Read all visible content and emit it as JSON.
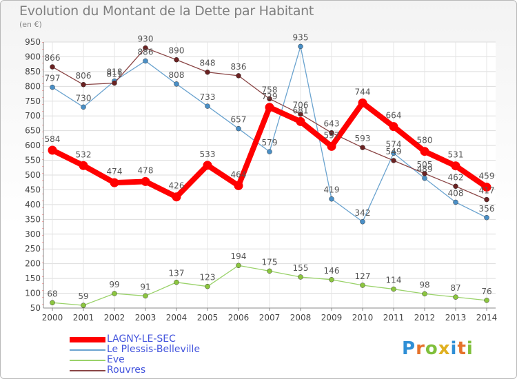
{
  "header": {
    "title": "Evolution du Montant de la Dette par Habitant",
    "unit": "(en €)"
  },
  "logo": {
    "text": "Proxiti",
    "letters": [
      {
        "ch": "P",
        "color": "#2f8fd6"
      },
      {
        "ch": "r",
        "color": "#e5722a"
      },
      {
        "ch": "o",
        "color": "#7fbf3a"
      },
      {
        "ch": "x",
        "color": "#e0b020"
      },
      {
        "ch": "i",
        "color": "#2f8fd6"
      },
      {
        "ch": "t",
        "color": "#e5722a"
      },
      {
        "ch": "i",
        "color": "#7fbf3a"
      }
    ]
  },
  "chart_data": {
    "type": "line",
    "title": "Evolution du Montant de la Dette par Habitant",
    "ylabel": "(en €)",
    "xlabel": "",
    "x": [
      "2000",
      "2001",
      "2002",
      "2003",
      "2004",
      "2005",
      "2006",
      "2007",
      "2008",
      "2009",
      "2010",
      "2011",
      "2012",
      "2013",
      "2014"
    ],
    "ylim": [
      50,
      950
    ],
    "yticks": [
      50,
      100,
      150,
      200,
      250,
      300,
      350,
      400,
      450,
      500,
      550,
      600,
      650,
      700,
      750,
      800,
      850,
      900,
      950
    ],
    "grid": true,
    "legend_position": "bottom-left",
    "series": [
      {
        "name": "Le Plessis-Belleville",
        "color": "#6aa3cf",
        "marker": "#4a8fc6",
        "width": 1.3,
        "values": [
          797,
          730,
          818,
          886,
          808,
          733,
          657,
          579,
          935,
          419,
          342,
          574,
          489,
          408,
          356
        ]
      },
      {
        "name": "Eve",
        "color": "#9ad26a",
        "marker": "#8cc63f",
        "width": 1.3,
        "values": [
          68,
          59,
          99,
          91,
          137,
          123,
          194,
          175,
          155,
          146,
          127,
          114,
          98,
          87,
          76
        ]
      },
      {
        "name": "Rouvres",
        "color": "#8a4545",
        "marker": "#6b2222",
        "width": 1.3,
        "values": [
          866,
          806,
          811,
          930,
          890,
          848,
          836,
          758,
          706,
          643,
          593,
          549,
          505,
          462,
          417
        ]
      },
      {
        "name": "LAGNY-LE-SEC",
        "color": "#ff0000",
        "marker": "#ff0000",
        "width": 8,
        "values": [
          584,
          532,
          474,
          478,
          426,
          533,
          464,
          729,
          681,
          597,
          744,
          664,
          580,
          531,
          459
        ]
      }
    ],
    "data_labels": {
      "Le Plessis-Belleville": [
        "797",
        "730",
        "818",
        "886",
        "808",
        "733",
        "657",
        "579",
        "935",
        "419",
        "342",
        "574",
        "489",
        "408",
        "356"
      ],
      "Eve": [
        "68",
        "59",
        "99",
        "91",
        "137",
        "123",
        "194",
        "175",
        "155",
        "146",
        "127",
        "114",
        "98",
        "87",
        "76"
      ],
      "Rouvres": [
        "866",
        "806",
        "811",
        "930",
        "890",
        "848",
        "836",
        "758",
        "706",
        "643",
        "593",
        "549",
        "505",
        "462",
        "417"
      ],
      "LAGNY-LE-SEC": [
        "584",
        "532",
        "474",
        "478",
        "426",
        "533",
        "464",
        "729",
        "681",
        "597",
        "744",
        "664",
        "580",
        "531",
        "459"
      ]
    }
  },
  "legend": [
    {
      "label": "LAGNY-LE-SEC",
      "color": "#ff0000",
      "thick": true
    },
    {
      "label": "Le Plessis-Belleville",
      "color": "#6aa3cf",
      "thick": false
    },
    {
      "label": "Eve",
      "color": "#9ad26a",
      "thick": false
    },
    {
      "label": "Rouvres",
      "color": "#8a4545",
      "thick": false
    }
  ]
}
